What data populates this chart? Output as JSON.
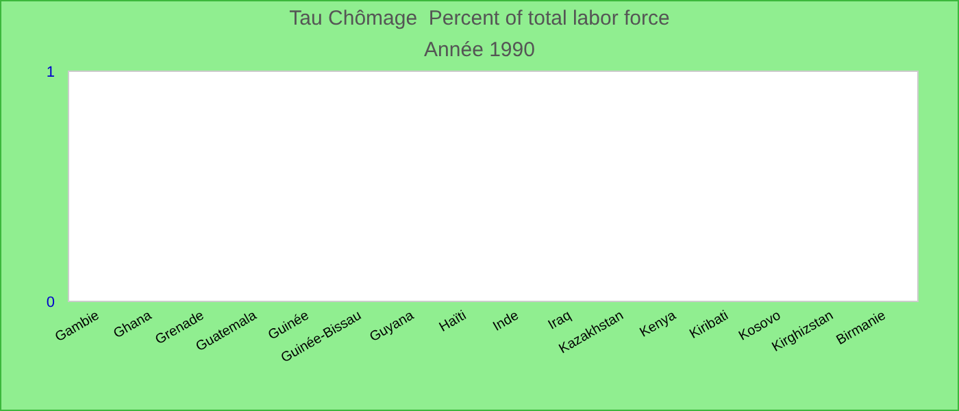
{
  "chart_data": {
    "type": "bar",
    "title": "Tau Chômage  Percent of total labor force",
    "subtitle": "Année 1990",
    "categories": [
      "Gambie",
      "Ghana",
      "Grenade",
      "Guatemala",
      "Guinée",
      "Guinée-Bissau",
      "Guyana",
      "Haïti",
      "Inde",
      "Iraq",
      "Kazakhstan",
      "Kenya",
      "Kiribati",
      "Kosovo",
      "Kirghizstan",
      "Birmanie"
    ],
    "values": [
      null,
      null,
      null,
      null,
      null,
      null,
      null,
      null,
      null,
      null,
      null,
      null,
      null,
      null,
      null,
      null
    ],
    "ylim": [
      0,
      1
    ],
    "yticks": [
      0,
      1
    ],
    "grid": false
  }
}
